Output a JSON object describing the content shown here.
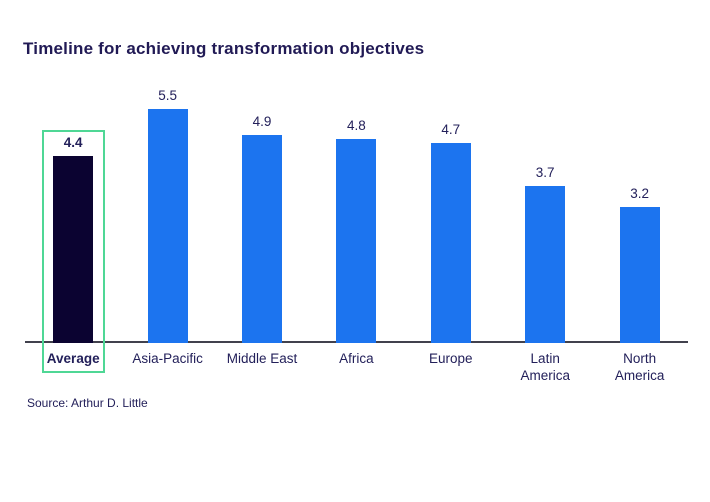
{
  "chart_data": {
    "type": "bar",
    "title": "Timeline for achieving transformation objectives",
    "categories": [
      "Average",
      "Asia-Pacific",
      "Middle East",
      "Africa",
      "Europe",
      "Latin\nAmerica",
      "North\nAmerica"
    ],
    "values": [
      4.4,
      5.5,
      4.9,
      4.8,
      4.7,
      3.7,
      3.2
    ],
    "xlabel": "",
    "ylabel": "",
    "ylim": [
      0,
      5.5
    ],
    "grid": false,
    "legend": false,
    "value_labels_shown": true,
    "bar_colors": {
      "default": "#1c74ef",
      "highlight": "#0b0331"
    },
    "highlighted_index": 0,
    "highlight_box_color": "#4fd795",
    "text_color": "#23205a",
    "axis_line_color": "#41414d"
  },
  "source": "Source: Arthur D. Little",
  "colors": {
    "background": "#ffffff",
    "title": "#211a55"
  }
}
